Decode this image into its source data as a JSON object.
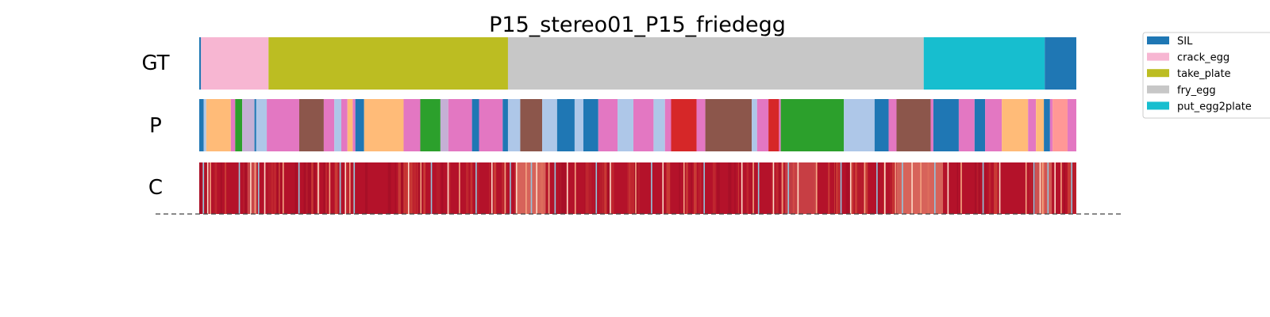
{
  "chart_data": {
    "type": "segmentation-timeline",
    "title": "P15_stereo01_P15_friedegg",
    "rows": [
      {
        "label": "GT"
      },
      {
        "label": "P"
      },
      {
        "label": "C"
      }
    ],
    "x_range": [
      0,
      1
    ],
    "legend": {
      "placement": "top-right",
      "items": [
        {
          "label": "SIL",
          "color": "#1f77b4"
        },
        {
          "label": "crack_egg",
          "color": "#f7b6d2"
        },
        {
          "label": "take_plate",
          "color": "#bcbd22"
        },
        {
          "label": "fry_egg",
          "color": "#c7c7c7"
        },
        {
          "label": "put_egg2plate",
          "color": "#17becf"
        }
      ]
    },
    "gt_segments": [
      {
        "start": 0.0,
        "end": 0.002,
        "color": "#1f77b4"
      },
      {
        "start": 0.002,
        "end": 0.079,
        "color": "#f7b6d2"
      },
      {
        "start": 0.079,
        "end": 0.352,
        "color": "#bcbd22"
      },
      {
        "start": 0.352,
        "end": 0.826,
        "color": "#c7c7c7"
      },
      {
        "start": 0.826,
        "end": 0.964,
        "color": "#17becf"
      },
      {
        "start": 0.964,
        "end": 1.0,
        "color": "#1f77b4"
      }
    ],
    "pred_segments": [
      {
        "start": 0.0,
        "end": 0.005,
        "color": "#1f77b4"
      },
      {
        "start": 0.005,
        "end": 0.008,
        "color": "#aec7e8"
      },
      {
        "start": 0.008,
        "end": 0.036,
        "color": "#ffbb78"
      },
      {
        "start": 0.036,
        "end": 0.041,
        "color": "#e377c2"
      },
      {
        "start": 0.041,
        "end": 0.049,
        "color": "#2ca02c"
      },
      {
        "start": 0.049,
        "end": 0.063,
        "color": "#c5b0d5"
      },
      {
        "start": 0.063,
        "end": 0.065,
        "color": "#1f77b4"
      },
      {
        "start": 0.065,
        "end": 0.077,
        "color": "#aec7e8"
      },
      {
        "start": 0.077,
        "end": 0.114,
        "color": "#e377c2"
      },
      {
        "start": 0.114,
        "end": 0.142,
        "color": "#8c564b"
      },
      {
        "start": 0.142,
        "end": 0.154,
        "color": "#e377c2"
      },
      {
        "start": 0.154,
        "end": 0.162,
        "color": "#aec7e8"
      },
      {
        "start": 0.162,
        "end": 0.169,
        "color": "#e377c2"
      },
      {
        "start": 0.169,
        "end": 0.175,
        "color": "#ffbb78"
      },
      {
        "start": 0.175,
        "end": 0.178,
        "color": "#e377c2"
      },
      {
        "start": 0.178,
        "end": 0.188,
        "color": "#1f77b4"
      },
      {
        "start": 0.188,
        "end": 0.233,
        "color": "#ffbb78"
      },
      {
        "start": 0.233,
        "end": 0.252,
        "color": "#e377c2"
      },
      {
        "start": 0.252,
        "end": 0.275,
        "color": "#2ca02c"
      },
      {
        "start": 0.275,
        "end": 0.284,
        "color": "#c5b0d5"
      },
      {
        "start": 0.284,
        "end": 0.311,
        "color": "#e377c2"
      },
      {
        "start": 0.311,
        "end": 0.319,
        "color": "#1f77b4"
      },
      {
        "start": 0.319,
        "end": 0.346,
        "color": "#e377c2"
      },
      {
        "start": 0.346,
        "end": 0.352,
        "color": "#1f77b4"
      },
      {
        "start": 0.352,
        "end": 0.366,
        "color": "#aec7e8"
      },
      {
        "start": 0.366,
        "end": 0.391,
        "color": "#8c564b"
      },
      {
        "start": 0.391,
        "end": 0.408,
        "color": "#aec7e8"
      },
      {
        "start": 0.408,
        "end": 0.428,
        "color": "#1f77b4"
      },
      {
        "start": 0.428,
        "end": 0.438,
        "color": "#aec7e8"
      },
      {
        "start": 0.438,
        "end": 0.455,
        "color": "#1f77b4"
      },
      {
        "start": 0.455,
        "end": 0.477,
        "color": "#e377c2"
      },
      {
        "start": 0.477,
        "end": 0.495,
        "color": "#aec7e8"
      },
      {
        "start": 0.495,
        "end": 0.518,
        "color": "#e377c2"
      },
      {
        "start": 0.518,
        "end": 0.531,
        "color": "#aec7e8"
      },
      {
        "start": 0.531,
        "end": 0.538,
        "color": "#e377c2"
      },
      {
        "start": 0.538,
        "end": 0.567,
        "color": "#d62728"
      },
      {
        "start": 0.567,
        "end": 0.577,
        "color": "#e377c2"
      },
      {
        "start": 0.577,
        "end": 0.63,
        "color": "#8c564b"
      },
      {
        "start": 0.63,
        "end": 0.636,
        "color": "#aec7e8"
      },
      {
        "start": 0.636,
        "end": 0.649,
        "color": "#e377c2"
      },
      {
        "start": 0.649,
        "end": 0.661,
        "color": "#d62728"
      },
      {
        "start": 0.661,
        "end": 0.663,
        "color": "#e377c2"
      },
      {
        "start": 0.663,
        "end": 0.735,
        "color": "#2ca02c"
      },
      {
        "start": 0.735,
        "end": 0.77,
        "color": "#aec7e8"
      },
      {
        "start": 0.77,
        "end": 0.786,
        "color": "#1f77b4"
      },
      {
        "start": 0.786,
        "end": 0.795,
        "color": "#e377c2"
      },
      {
        "start": 0.795,
        "end": 0.834,
        "color": "#8c564b"
      },
      {
        "start": 0.834,
        "end": 0.837,
        "color": "#e377c2"
      },
      {
        "start": 0.837,
        "end": 0.866,
        "color": "#1f77b4"
      },
      {
        "start": 0.866,
        "end": 0.884,
        "color": "#e377c2"
      },
      {
        "start": 0.884,
        "end": 0.896,
        "color": "#1f77b4"
      },
      {
        "start": 0.896,
        "end": 0.915,
        "color": "#e377c2"
      },
      {
        "start": 0.915,
        "end": 0.945,
        "color": "#ffbb78"
      },
      {
        "start": 0.945,
        "end": 0.954,
        "color": "#e377c2"
      },
      {
        "start": 0.954,
        "end": 0.963,
        "color": "#ffbb78"
      },
      {
        "start": 0.963,
        "end": 0.97,
        "color": "#1f77b4"
      },
      {
        "start": 0.97,
        "end": 0.973,
        "color": "#e377c2"
      },
      {
        "start": 0.973,
        "end": 0.99,
        "color": "#ff9896"
      },
      {
        "start": 0.99,
        "end": 1.0,
        "color": "#e377c2"
      }
    ],
    "confidence_low_regions": [
      0.004,
      0.009,
      0.012,
      0.045,
      0.058,
      0.063,
      0.067,
      0.074,
      0.095,
      0.113,
      0.135,
      0.148,
      0.16,
      0.166,
      0.171,
      0.176,
      0.238,
      0.252,
      0.264,
      0.283,
      0.296,
      0.315,
      0.333,
      0.348,
      0.354,
      0.361,
      0.372,
      0.378,
      0.384,
      0.398,
      0.405,
      0.419,
      0.428,
      0.452,
      0.468,
      0.497,
      0.515,
      0.528,
      0.552,
      0.575,
      0.618,
      0.631,
      0.637,
      0.654,
      0.664,
      0.671,
      0.682,
      0.703,
      0.731,
      0.742,
      0.758,
      0.772,
      0.781,
      0.793,
      0.801,
      0.812,
      0.822,
      0.838,
      0.853,
      0.868,
      0.893,
      0.912,
      0.942,
      0.951,
      0.958,
      0.961,
      0.967,
      0.975,
      0.982,
      0.994
    ],
    "confidence_broad_regions": [
      {
        "start": 0.055,
        "end": 0.066,
        "level": 0.35
      },
      {
        "start": 0.361,
        "end": 0.395,
        "level": 0.55
      },
      {
        "start": 0.668,
        "end": 0.705,
        "level": 0.3
      },
      {
        "start": 0.795,
        "end": 0.848,
        "level": 0.55
      },
      {
        "start": 0.953,
        "end": 0.972,
        "level": 0.45
      }
    ]
  }
}
